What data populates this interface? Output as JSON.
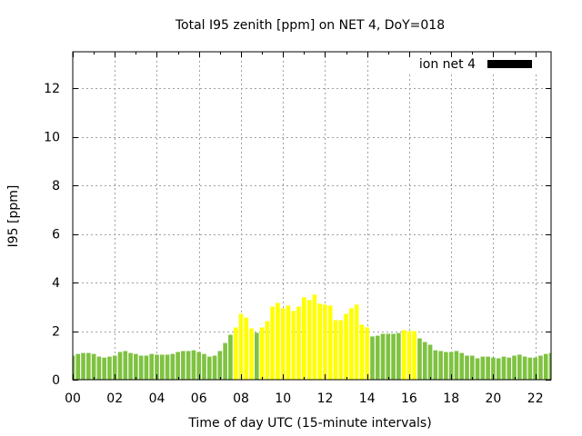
{
  "chart_data": {
    "type": "bar",
    "title": "Total I95 zenith [ppm] on NET 4, DoY=018",
    "xlabel": "Time of day UTC (15-minute intervals)",
    "ylabel": "I95 [ppm]",
    "xlim": [
      0,
      22.75
    ],
    "ylim": [
      0,
      13.5
    ],
    "grid": true,
    "xticks": {
      "values": [
        0,
        2,
        4,
        6,
        8,
        10,
        12,
        14,
        16,
        18,
        20,
        22
      ],
      "labels": [
        "00",
        "02",
        "04",
        "06",
        "08",
        "10",
        "12",
        "14",
        "16",
        "18",
        "20",
        "22"
      ],
      "minor_step": 1
    },
    "yticks": {
      "values": [
        0,
        2,
        4,
        6,
        8,
        10,
        12
      ],
      "labels": [
        "0",
        "2",
        "4",
        "6",
        "8",
        "10",
        "12"
      ]
    },
    "legend": {
      "position": "top-right",
      "entries": [
        {
          "label": "ion net 4",
          "color": "#000000"
        }
      ]
    },
    "color_rule": {
      "threshold": 2.0,
      "below_color": "#7fc241",
      "at_or_above_color": "#ffff00"
    },
    "series": [
      {
        "name": "ion net 4",
        "x": [
          0,
          0.25,
          0.5,
          0.75,
          1,
          1.25,
          1.5,
          1.75,
          2,
          2.25,
          2.5,
          2.75,
          3,
          3.25,
          3.5,
          3.75,
          4,
          4.25,
          4.5,
          4.75,
          5,
          5.25,
          5.5,
          5.75,
          6,
          6.25,
          6.5,
          6.75,
          7,
          7.25,
          7.5,
          7.75,
          8,
          8.25,
          8.5,
          8.75,
          9,
          9.25,
          9.5,
          9.75,
          10,
          10.25,
          10.5,
          10.75,
          11,
          11.25,
          11.5,
          11.75,
          12,
          12.25,
          12.5,
          12.75,
          13,
          13.25,
          13.5,
          13.75,
          14,
          14.25,
          14.5,
          14.75,
          15,
          15.25,
          15.5,
          15.75,
          16,
          16.25,
          16.5,
          16.75,
          17,
          17.25,
          17.5,
          17.75,
          18,
          18.25,
          18.5,
          18.75,
          19,
          19.25,
          19.5,
          19.75,
          20,
          20.25,
          20.5,
          20.75,
          21,
          21.25,
          21.5,
          21.75,
          22,
          22.25,
          22.5,
          22.75
        ],
        "values": [
          0.99,
          1.06,
          1.1,
          1.1,
          1.06,
          0.95,
          0.91,
          0.95,
          0.99,
          1.14,
          1.18,
          1.1,
          1.06,
          0.99,
          0.99,
          1.06,
          1.03,
          1.03,
          1.03,
          1.06,
          1.14,
          1.18,
          1.18,
          1.21,
          1.14,
          1.06,
          0.95,
          0.99,
          1.18,
          1.51,
          1.85,
          2.15,
          2.71,
          2.56,
          2.11,
          1.93,
          2.15,
          2.41,
          3.01,
          3.16,
          2.94,
          3.05,
          2.83,
          3.01,
          3.39,
          3.28,
          3.5,
          3.13,
          3.09,
          3.05,
          2.45,
          2.45,
          2.71,
          2.94,
          3.09,
          2.26,
          2.15,
          1.78,
          1.81,
          1.89,
          1.89,
          1.89,
          1.92,
          2.04,
          2.0,
          2.0,
          1.7,
          1.55,
          1.44,
          1.21,
          1.18,
          1.14,
          1.14,
          1.18,
          1.1,
          0.99,
          0.99,
          0.88,
          0.95,
          0.95,
          0.91,
          0.88,
          0.95,
          0.91,
          0.99,
          1.03,
          0.95,
          0.91,
          0.91,
          0.99,
          1.06,
          1.1
        ]
      }
    ]
  }
}
